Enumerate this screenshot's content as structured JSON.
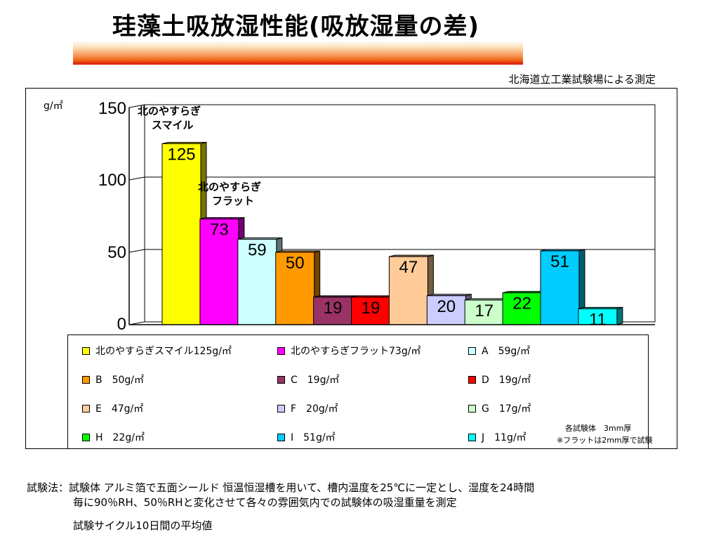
{
  "title": "珪藻土吸放湿性能(吸放湿量の差)",
  "source": "北海道立工業試験場による測定",
  "chart_data": {
    "type": "bar",
    "unit_label": "g/㎡",
    "ylim": [
      0,
      150
    ],
    "yticks": [
      "150",
      "100",
      "50",
      "0"
    ],
    "categories": [
      "北のやすらぎスマイル",
      "北のやすらぎフラット",
      "A",
      "B",
      "C",
      "D",
      "E",
      "F",
      "G",
      "H",
      "I",
      "J"
    ],
    "values": [
      125,
      73,
      59,
      50,
      19,
      19,
      47,
      20,
      17,
      22,
      51,
      11
    ],
    "value_labels": [
      "125",
      "73",
      "59",
      "50",
      "19",
      "19",
      "47",
      "20",
      "17",
      "22",
      "51",
      "11"
    ],
    "colors": [
      "#ffff00",
      "#ff00ff",
      "#ccffff",
      "#ff9900",
      "#993366",
      "#ff0000",
      "#ffcc99",
      "#ccccff",
      "#ccffcc",
      "#00ff00",
      "#00ccff",
      "#00ffff"
    ],
    "annotations": [
      "北のやすらぎ\nスマイル",
      "北のやすらぎ\nフラット"
    ],
    "legend": [
      "北のやすらぎスマイル125g/㎡",
      "北のやすらぎフラット73g/㎡",
      "A　59g/㎡",
      "B　50g/㎡",
      "C　19g/㎡",
      "D　19g/㎡",
      "E　47g/㎡",
      "F　20g/㎡",
      "G　17g/㎡",
      "H　22g/㎡",
      "I　51g/㎡",
      "J　11g/㎡"
    ],
    "grid": true
  },
  "notes": {
    "thickness": "各試験体　3mm厚",
    "flat": "※フラットは2mm厚で試験"
  },
  "method": {
    "line1": "試験法：試験体 アルミ箔で五面シールド 恒温恒湿槽を用いて、槽内温度を25℃に一定とし、湿度を24時間",
    "line2": "毎に90％RH、50％RHと変化させて各々の雰囲気内での試験体の吸湿重量を測定",
    "line3": "試験サイクル10日間の平均値"
  }
}
